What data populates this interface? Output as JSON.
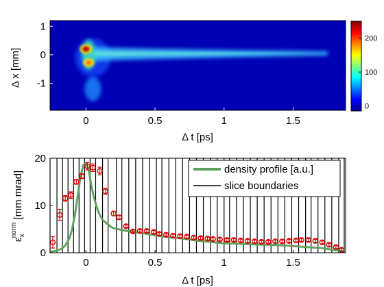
{
  "chart_data": [
    {
      "type": "heatmap",
      "xlabel": "Δ t [ps]",
      "ylabel": "Δ x [mm]",
      "xlim": [
        -0.26,
        1.88
      ],
      "ylim": [
        -1.95,
        1.2
      ],
      "x_ticks": [
        0,
        0.5,
        1,
        1.5
      ],
      "x_tick_labels": [
        "0",
        "0.5",
        "1",
        "1.5"
      ],
      "y_ticks": [
        1,
        0,
        -1
      ],
      "y_tick_labels": [
        "1",
        "0",
        "-1"
      ],
      "colorbar": {
        "colormap": "jet",
        "range": [
          -15,
          250
        ],
        "ticks": [
          0,
          100,
          200
        ],
        "tick_labels": [
          "0",
          "100",
          "200"
        ]
      },
      "features": [
        {
          "kind": "hotspot",
          "x": 0.0,
          "y": 0.2,
          "value": 230
        },
        {
          "kind": "hotspot",
          "x": 0.02,
          "y": -0.28,
          "value": 150
        },
        {
          "kind": "tail",
          "x_start": 0.05,
          "x_end": 1.75,
          "y": 0.05,
          "value": 60
        },
        {
          "kind": "lower_lobe",
          "x": 0.05,
          "y": -1.2,
          "value": 45
        }
      ],
      "colors": {
        "background": "#0000b4"
      }
    },
    {
      "type": "line",
      "xlabel": "Δ t [ps]",
      "ylabel": "ε",
      "ylabel_sup": "norm",
      "ylabel_sub": "x",
      "ylabel_unit": "[mm mrad]",
      "xlim": [
        -0.26,
        1.88
      ],
      "ylim": [
        0,
        20
      ],
      "x_ticks": [
        0,
        0.5,
        1,
        1.5
      ],
      "x_tick_labels": [
        "0",
        "0.5",
        "1",
        "1.5"
      ],
      "y_ticks": [
        0,
        10,
        20
      ],
      "y_tick_labels": [
        "0",
        "10",
        "20"
      ],
      "legend": {
        "placement": "top-right",
        "entries": [
          "density profile [a.u.]",
          "slice boundaries"
        ]
      },
      "series": [
        {
          "name": "density profile [a.u.]",
          "color": "#5aa05a",
          "x": [
            -0.26,
            -0.22,
            -0.18,
            -0.15,
            -0.12,
            -0.1,
            -0.08,
            -0.06,
            -0.04,
            -0.02,
            0.0,
            0.02,
            0.04,
            0.06,
            0.08,
            0.1,
            0.12,
            0.15,
            0.18,
            0.2,
            0.23,
            0.26,
            0.3,
            0.35,
            0.4,
            0.5,
            0.6,
            0.7,
            0.8,
            0.9,
            1.0,
            1.1,
            1.2,
            1.3,
            1.4,
            1.5,
            1.6,
            1.7,
            1.8,
            1.86
          ],
          "values": [
            0.2,
            0.4,
            0.8,
            1.5,
            3.0,
            5.0,
            8.0,
            12.0,
            16.0,
            18.5,
            19.0,
            17.5,
            14.0,
            11.5,
            9.5,
            8.0,
            7.0,
            6.2,
            5.5,
            5.2,
            5.0,
            4.8,
            4.6,
            4.4,
            4.2,
            3.7,
            3.3,
            3.0,
            2.6,
            2.3,
            2.0,
            1.9,
            1.8,
            1.7,
            1.6,
            1.4,
            1.2,
            1.0,
            0.6,
            0.3
          ]
        },
        {
          "name": "emittance",
          "color": "#e00000",
          "marker": "circle",
          "x": [
            -0.24,
            -0.19,
            -0.15,
            -0.11,
            -0.07,
            -0.03,
            0.01,
            0.05,
            0.1,
            0.14,
            0.2,
            0.24,
            0.29,
            0.34,
            0.39,
            0.44,
            0.49,
            0.53,
            0.58,
            0.63,
            0.68,
            0.73,
            0.78,
            0.83,
            0.88,
            0.92,
            0.97,
            1.02,
            1.07,
            1.12,
            1.17,
            1.22,
            1.27,
            1.32,
            1.37,
            1.42,
            1.47,
            1.52,
            1.56,
            1.61,
            1.66,
            1.71,
            1.76,
            1.81,
            1.85
          ],
          "values": [
            2.2,
            8.0,
            11.5,
            12.2,
            15.0,
            16.2,
            18.3,
            18.0,
            17.3,
            13.0,
            8.3,
            7.5,
            5.6,
            4.5,
            4.6,
            4.6,
            4.4,
            4.0,
            3.8,
            3.6,
            3.5,
            3.4,
            3.2,
            3.1,
            3.0,
            2.9,
            2.8,
            2.7,
            2.7,
            2.6,
            2.5,
            2.4,
            2.3,
            2.3,
            2.4,
            2.4,
            2.5,
            2.6,
            2.7,
            2.7,
            2.5,
            2.2,
            1.7,
            1.2,
            0.6
          ],
          "errors": [
            1.2,
            1.2,
            0.6,
            0.7,
            0.5,
            0.5,
            0.8,
            0.8,
            0.8,
            0.6,
            0.5,
            0.4,
            0.3,
            0.3,
            0.3,
            0.3,
            0.3,
            0.3,
            0.3,
            0.3,
            0.3,
            0.3,
            0.3,
            0.3,
            0.3,
            0.3,
            0.3,
            0.3,
            0.3,
            0.3,
            0.3,
            0.3,
            0.3,
            0.3,
            0.3,
            0.3,
            0.3,
            0.3,
            0.3,
            0.3,
            0.3,
            0.3,
            0.3,
            0.3,
            0.3
          ]
        }
      ],
      "slice_boundaries": {
        "name": "slice boundaries",
        "color": "#000000",
        "x": [
          -0.26,
          -0.21,
          -0.17,
          -0.13,
          -0.09,
          -0.05,
          -0.01,
          0.03,
          0.07,
          0.12,
          0.16,
          0.22,
          0.26,
          0.31,
          0.36,
          0.41,
          0.46,
          0.51,
          0.55,
          0.6,
          0.65,
          0.7,
          0.75,
          0.8,
          0.85,
          0.9,
          0.95,
          1.0,
          1.04,
          1.09,
          1.14,
          1.19,
          1.24,
          1.29,
          1.34,
          1.39,
          1.44,
          1.49,
          1.54,
          1.59,
          1.63,
          1.68,
          1.73,
          1.78,
          1.83,
          1.87
        ]
      }
    }
  ]
}
